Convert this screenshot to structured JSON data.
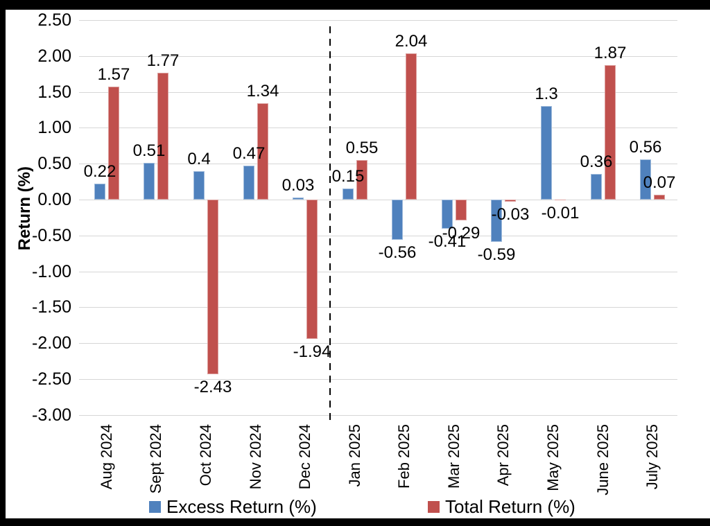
{
  "page": {
    "background_color": "#000000",
    "panel_color": "#ffffff"
  },
  "chart_data": {
    "type": "bar",
    "title": "",
    "xlabel": "",
    "ylabel": "Return (%)",
    "ylim": [
      -3.0,
      2.5
    ],
    "ytick_step": 0.5,
    "ytick_labels": [
      "2.50",
      "2.00",
      "1.50",
      "1.00",
      "0.50",
      "0.00",
      "-0.50",
      "-1.00",
      "-1.50",
      "-2.00",
      "-2.50",
      "-3.00"
    ],
    "grid": true,
    "gridline_color": "#d6d6d6",
    "divider_after_category": "Dec 2024",
    "divider_color": "#000000",
    "legend_position": "bottom",
    "categories": [
      "Aug 2024",
      "Sept 2024",
      "Oct 2024",
      "Nov 2024",
      "Dec 2024",
      "Jan 2025",
      "Feb 2025",
      "Mar 2025",
      "Apr 2025",
      "May 2025",
      "June 2025",
      "July 2025"
    ],
    "series": [
      {
        "name": "Excess Return (%)",
        "color": "#4f81bd",
        "values": [
          0.22,
          0.51,
          0.4,
          0.47,
          0.03,
          0.15,
          -0.56,
          -0.41,
          -0.59,
          1.3,
          0.36,
          0.56
        ],
        "labels": [
          "0.22",
          "0.51",
          "0.4",
          "0.47",
          "0.03",
          "0.15",
          "-0.56",
          "-0.41",
          "-0.59",
          "1.3",
          "0.36",
          "0.56"
        ]
      },
      {
        "name": "Total Return (%)",
        "color": "#c0504d",
        "values": [
          1.57,
          1.77,
          -2.43,
          1.34,
          -1.94,
          0.55,
          2.04,
          -0.29,
          -0.03,
          -0.01,
          1.87,
          0.07
        ],
        "labels": [
          "1.57",
          "1.77",
          "-2.43",
          "1.34",
          "-1.94",
          "0.55",
          "2.04",
          "-0.29",
          "-0.03",
          "-0.01",
          "1.87",
          "0.07"
        ]
      }
    ]
  }
}
